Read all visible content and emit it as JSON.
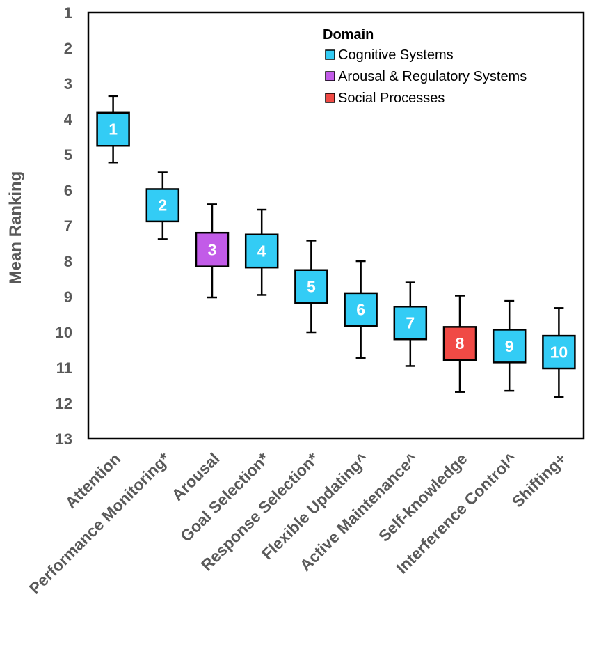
{
  "chart_data": {
    "type": "box",
    "ylabel": "Mean Ranking",
    "ylim": [
      1,
      13
    ],
    "y_inverted": true,
    "yticks": [
      1,
      2,
      3,
      4,
      5,
      6,
      7,
      8,
      9,
      10,
      11,
      12,
      13
    ],
    "legend": {
      "title": "Domain",
      "placement": "top-right",
      "entries": [
        {
          "label": "Cognitive Systems",
          "color": "#33ccf5"
        },
        {
          "label": "Arousal & Regulatory Systems",
          "color": "#c25be8"
        },
        {
          "label": "Social Processes",
          "color": "#f04a45"
        }
      ]
    },
    "categories": [
      "Attention",
      "Performance Monitoring*",
      "Arousal",
      "Goal Selection*",
      "Response Selection*",
      "Flexible Updating^",
      "Active Maintenance^",
      "Self-knowledge",
      "Interference Control^",
      "Shifting+"
    ],
    "boxes": [
      {
        "rank": "1",
        "domain": 0,
        "whisker_low": 3.35,
        "box_low": 3.82,
        "box_high": 4.75,
        "whisker_high": 5.22
      },
      {
        "rank": "2",
        "domain": 0,
        "whisker_low": 5.5,
        "box_low": 5.97,
        "box_high": 6.88,
        "whisker_high": 7.38
      },
      {
        "rank": "3",
        "domain": 1,
        "whisker_low": 6.4,
        "box_low": 7.2,
        "box_high": 8.15,
        "whisker_high": 9.02
      },
      {
        "rank": "4",
        "domain": 0,
        "whisker_low": 6.55,
        "box_low": 7.25,
        "box_high": 8.18,
        "whisker_high": 8.95
      },
      {
        "rank": "5",
        "domain": 0,
        "whisker_low": 7.42,
        "box_low": 8.25,
        "box_high": 9.18,
        "whisker_high": 10.0
      },
      {
        "rank": "6",
        "domain": 0,
        "whisker_low": 8.0,
        "box_low": 8.9,
        "box_high": 9.82,
        "whisker_high": 10.72
      },
      {
        "rank": "7",
        "domain": 0,
        "whisker_low": 8.6,
        "box_low": 9.28,
        "box_high": 10.2,
        "whisker_high": 10.95
      },
      {
        "rank": "8",
        "domain": 2,
        "whisker_low": 8.97,
        "box_low": 9.85,
        "box_high": 10.78,
        "whisker_high": 11.68
      },
      {
        "rank": "9",
        "domain": 0,
        "whisker_low": 9.12,
        "box_low": 9.93,
        "box_high": 10.85,
        "whisker_high": 11.65
      },
      {
        "rank": "10",
        "domain": 0,
        "whisker_low": 9.32,
        "box_low": 10.1,
        "box_high": 11.02,
        "whisker_high": 11.82
      }
    ]
  }
}
